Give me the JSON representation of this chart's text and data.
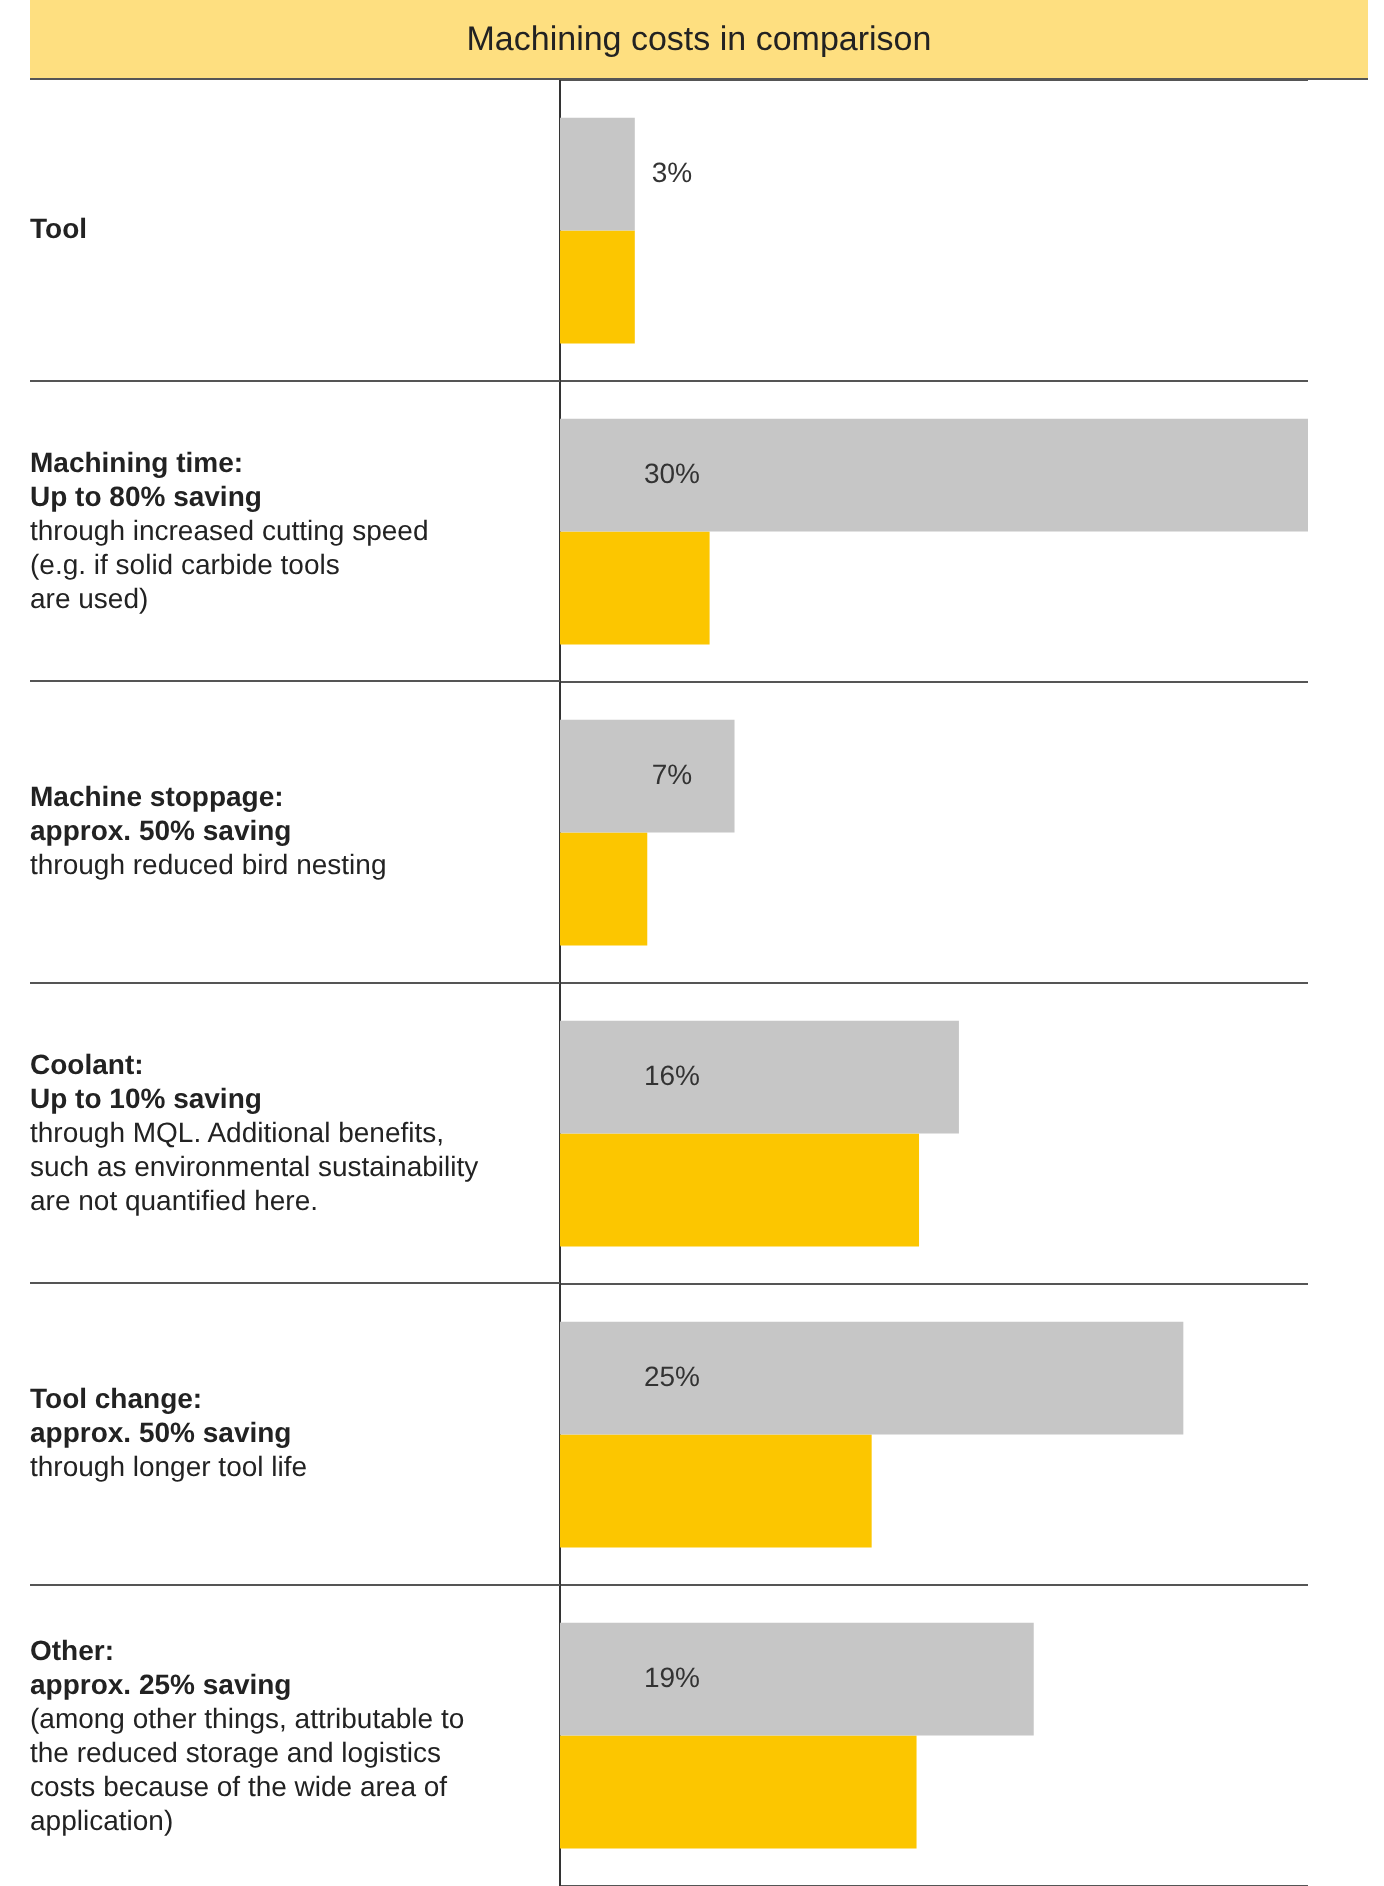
{
  "chart_data": {
    "type": "bar",
    "orientation": "horizontal",
    "tick_labels": "y",
    "title": "Machining costs in comparison",
    "categories": [
      "Tool",
      "Machining time:\nUp to 80% saving\nthrough increased cutting speed\n(e.g. if solid carbide tools\nare used)",
      "Machine stoppage:\napprox. 50% saving\nthrough reduced bird nesting",
      "Coolant:\nUp to 10% saving\nthrough MQL. Additional benefits,\nsuch as environmental sustainability\nare not quantified here.",
      "Tool change:\napprox. 50% saving\nthrough longer tool life",
      "Other:\napprox. 25% saving\n(among other things, attributable to\nthe reduced storage and logistics\ncosts because of the wide area of\napplication)"
    ],
    "series": [
      {
        "color": "#c6c6c6",
        "values": [
          3,
          30,
          7,
          16,
          25,
          19
        ],
        "value_labels": [
          "3%",
          "30%",
          "7%",
          "16%",
          "25%",
          "19%"
        ]
      },
      {
        "color": "#fcc600",
        "values": [
          3,
          6,
          3.5,
          14.4,
          12.5,
          14.3
        ]
      }
    ],
    "grid": "y",
    "legend": false
  }
}
